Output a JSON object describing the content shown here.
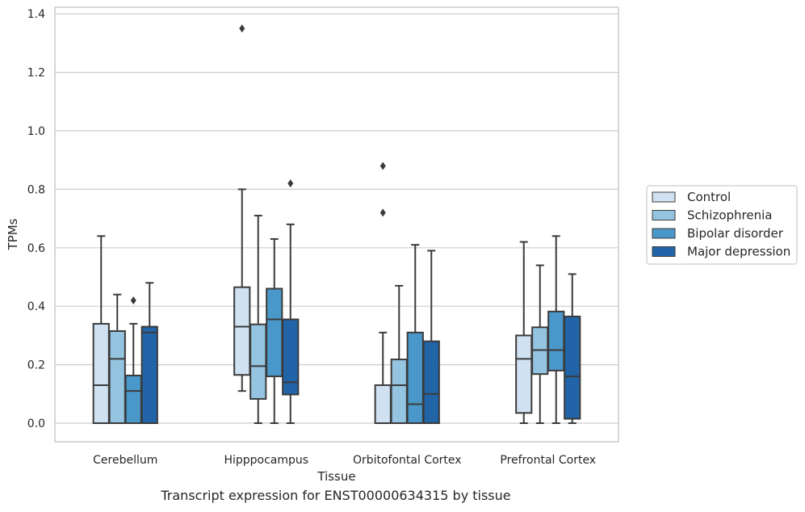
{
  "chart_data": {
    "type": "box",
    "xlabel": "Tissue",
    "ylabel": "TPMs",
    "ylim": [
      -0.065,
      1.42
    ],
    "yticks": [
      "0.0",
      "0.2",
      "0.4",
      "0.6",
      "0.8",
      "1.0",
      "1.2",
      "1.4"
    ],
    "grid": true,
    "legend_position": "right",
    "categories": [
      "Cerebellum",
      "Hipppocampus",
      "Orbitofontal Cortex",
      "Prefrontal Cortex"
    ],
    "series": [
      {
        "name": "Control",
        "color": "#d0e1f2",
        "boxes": [
          {
            "min": 0.0,
            "q1": 0.0,
            "median": 0.13,
            "q3": 0.34,
            "max": 0.64,
            "outliers": []
          },
          {
            "min": 0.11,
            "q1": 0.165,
            "median": 0.33,
            "q3": 0.465,
            "max": 0.8,
            "outliers": [
              1.35
            ]
          },
          {
            "min": 0.0,
            "q1": 0.0,
            "median": 0.0,
            "q3": 0.13,
            "max": 0.31,
            "outliers": [
              0.72,
              0.88
            ]
          },
          {
            "min": 0.0,
            "q1": 0.035,
            "median": 0.22,
            "q3": 0.3,
            "max": 0.62,
            "outliers": []
          }
        ]
      },
      {
        "name": "Schizophrenia",
        "color": "#94c4df",
        "boxes": [
          {
            "min": 0.0,
            "q1": 0.0,
            "median": 0.22,
            "q3": 0.315,
            "max": 0.44,
            "outliers": []
          },
          {
            "min": 0.0,
            "q1": 0.083,
            "median": 0.195,
            "q3": 0.338,
            "max": 0.71,
            "outliers": []
          },
          {
            "min": 0.0,
            "q1": 0.0,
            "median": 0.13,
            "q3": 0.218,
            "max": 0.47,
            "outliers": []
          },
          {
            "min": 0.0,
            "q1": 0.168,
            "median": 0.25,
            "q3": 0.328,
            "max": 0.54,
            "outliers": []
          }
        ]
      },
      {
        "name": "Bipolar disorder",
        "color": "#4a98c9",
        "boxes": [
          {
            "min": 0.0,
            "q1": 0.0,
            "median": 0.11,
            "q3": 0.163,
            "max": 0.34,
            "outliers": [
              0.42
            ]
          },
          {
            "min": 0.0,
            "q1": 0.16,
            "median": 0.355,
            "q3": 0.46,
            "max": 0.63,
            "outliers": []
          },
          {
            "min": 0.0,
            "q1": 0.0,
            "median": 0.065,
            "q3": 0.31,
            "max": 0.61,
            "outliers": []
          },
          {
            "min": 0.0,
            "q1": 0.18,
            "median": 0.25,
            "q3": 0.382,
            "max": 0.64,
            "outliers": []
          }
        ]
      },
      {
        "name": "Major depression",
        "color": "#2264a8",
        "boxes": [
          {
            "min": 0.0,
            "q1": 0.0,
            "median": 0.31,
            "q3": 0.33,
            "max": 0.48,
            "outliers": []
          },
          {
            "min": 0.0,
            "q1": 0.098,
            "median": 0.14,
            "q3": 0.355,
            "max": 0.68,
            "outliers": [
              0.82
            ]
          },
          {
            "min": 0.0,
            "q1": 0.0,
            "median": 0.1,
            "q3": 0.28,
            "max": 0.59,
            "outliers": []
          },
          {
            "min": 0.0,
            "q1": 0.015,
            "median": 0.16,
            "q3": 0.365,
            "max": 0.51,
            "outliers": []
          }
        ]
      }
    ],
    "caption": "Transcript expression for ENST00000634315 by tissue"
  }
}
